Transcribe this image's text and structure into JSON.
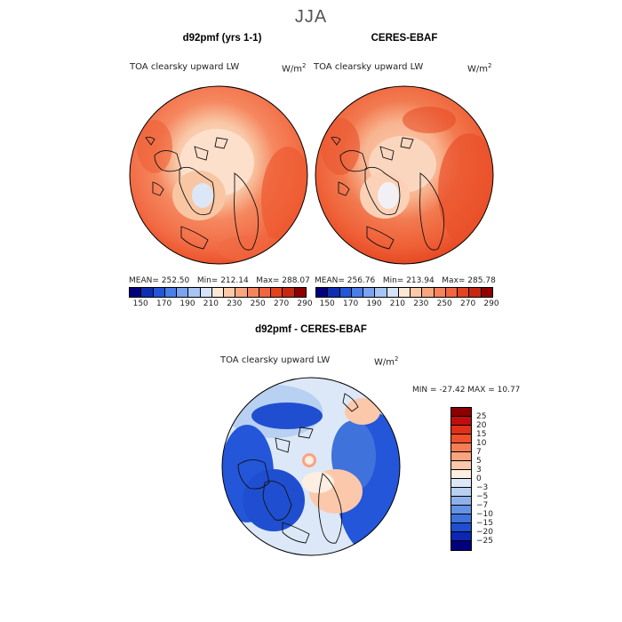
{
  "season": "JJA",
  "panels": {
    "model": {
      "title": "d92pmf (yrs 1-1)",
      "variable": "TOA clearsky upward LW",
      "units": "W/m",
      "units_exp": "2",
      "mean_text": "MEAN= 252.50",
      "min_text": "Min= 212.14",
      "max_text": "Max= 288.07"
    },
    "obs": {
      "title": "CERES-EBAF",
      "variable": "TOA clearsky upward LW",
      "units": "W/m",
      "units_exp": "2",
      "mean_text": "MEAN= 256.76",
      "min_text": "Min= 213.94",
      "max_text": "Max= 285.78"
    },
    "diff": {
      "title": "d92pmf - CERES-EBAF",
      "variable": "TOA clearsky upward LW",
      "units": "W/m",
      "units_exp": "2",
      "minmax_text": "MIN = -27.42 MAX = 10.77"
    }
  },
  "colorbar_abs": {
    "colors": [
      "#00007f",
      "#0c2fb5",
      "#2356d9",
      "#4a7ee8",
      "#7ba3ef",
      "#a8c4f3",
      "#d4e3f8",
      "#fbe7d6",
      "#f9c9a9",
      "#f7a680",
      "#f5845c",
      "#f26540",
      "#e3431f",
      "#c72812",
      "#900000"
    ],
    "tick_labels": [
      "150",
      "170",
      "190",
      "210",
      "230",
      "250",
      "270",
      "290"
    ]
  },
  "colorbar_diff": {
    "colors": [
      "#8b0000",
      "#c00e0e",
      "#e0301a",
      "#f0502c",
      "#f57e56",
      "#f9a37f",
      "#fbc8ab",
      "#fdeee2",
      "#dce8f7",
      "#b8d0f1",
      "#8fb1ea",
      "#6592e3",
      "#3f72db",
      "#1f4fd0",
      "#0b27b4",
      "#00007f"
    ],
    "tick_labels": [
      "25",
      "20",
      "15",
      "10",
      "7",
      "5",
      "3",
      "0",
      "−3",
      "−5",
      "−7",
      "−10",
      "−15",
      "−20",
      "−25"
    ]
  }
}
